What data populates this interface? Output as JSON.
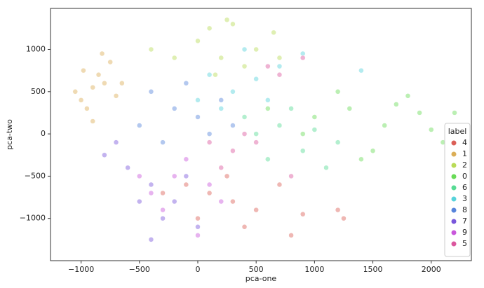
{
  "chart_data": {
    "type": "scatter",
    "xlabel": "pca-one",
    "ylabel": "pca-two",
    "xlim": [
      -1262,
      2344
    ],
    "ylim": [
      -1500,
      1485
    ],
    "xticks": [
      {
        "value": -1000,
        "label": "−1000"
      },
      {
        "value": -500,
        "label": "−500"
      },
      0,
      500,
      1000,
      1500,
      2000
    ],
    "yticks": [
      {
        "value": -1000,
        "label": "−1000"
      },
      {
        "value": -500,
        "label": "−500"
      },
      0,
      500,
      1000
    ],
    "legend_title": "label",
    "legend_position": "lower right",
    "series": [
      {
        "name": "4",
        "color": "#db5f57",
        "x": [
          100,
          -100,
          300,
          500,
          700,
          900,
          1200,
          250,
          -300,
          0,
          400,
          800,
          1250
        ],
        "y": [
          -700,
          -600,
          -800,
          -900,
          -600,
          -950,
          -900,
          -500,
          -700,
          -1000,
          -1100,
          -1200,
          -1000
        ]
      },
      {
        "name": "1",
        "color": "#dbae57",
        "x": [
          -900,
          -1000,
          -850,
          -800,
          -950,
          -1050,
          -750,
          -700,
          -900,
          -820,
          -650,
          -980
        ],
        "y": [
          550,
          400,
          700,
          600,
          300,
          500,
          850,
          450,
          150,
          950,
          600,
          750
        ]
      },
      {
        "name": "2",
        "color": "#b9db57",
        "x": [
          200,
          0,
          300,
          500,
          100,
          -200,
          400,
          650,
          250,
          -400,
          700,
          150
        ],
        "y": [
          900,
          1100,
          1300,
          1000,
          1250,
          900,
          800,
          1200,
          1350,
          1000,
          900,
          700
        ]
      },
      {
        "name": "0",
        "color": "#69db57",
        "x": [
          1000,
          1300,
          1600,
          1900,
          2100,
          2200,
          1500,
          1800,
          900,
          1200,
          1700,
          2000,
          1400,
          600
        ],
        "y": [
          200,
          300,
          100,
          250,
          -100,
          250,
          -200,
          450,
          0,
          500,
          350,
          50,
          -300,
          300
        ]
      },
      {
        "name": "6",
        "color": "#57db94",
        "x": [
          700,
          900,
          500,
          1100,
          800,
          600,
          1000,
          400,
          1200
        ],
        "y": [
          100,
          -200,
          0,
          -400,
          300,
          -300,
          50,
          200,
          -100
        ]
      },
      {
        "name": "3",
        "color": "#57d3db",
        "x": [
          300,
          100,
          500,
          700,
          0,
          400,
          900,
          1400,
          200,
          600
        ],
        "y": [
          500,
          700,
          650,
          800,
          400,
          1000,
          950,
          750,
          300,
          400
        ]
      },
      {
        "name": "8",
        "color": "#5784db",
        "x": [
          -200,
          -400,
          0,
          200,
          -500,
          -100,
          100,
          300,
          -300
        ],
        "y": [
          300,
          500,
          200,
          400,
          100,
          600,
          0,
          100,
          -100
        ]
      },
      {
        "name": "7",
        "color": "#7957db",
        "x": [
          -400,
          -600,
          -200,
          -300,
          -700,
          -500,
          0,
          -800,
          -100,
          -400
        ],
        "y": [
          -600,
          -400,
          -800,
          -1000,
          -100,
          -800,
          -1100,
          -250,
          -500,
          -1250
        ]
      },
      {
        "name": "9",
        "color": "#c957db",
        "x": [
          -200,
          -100,
          -400,
          100,
          -300,
          200,
          0,
          -500
        ],
        "y": [
          -500,
          -300,
          -700,
          -600,
          -900,
          -800,
          -1200,
          -500
        ]
      },
      {
        "name": "5",
        "color": "#db579e",
        "x": [
          300,
          500,
          200,
          700,
          100,
          600,
          800,
          900,
          400
        ],
        "y": [
          -200,
          -100,
          -400,
          700,
          -100,
          800,
          -500,
          900,
          0
        ]
      }
    ]
  }
}
